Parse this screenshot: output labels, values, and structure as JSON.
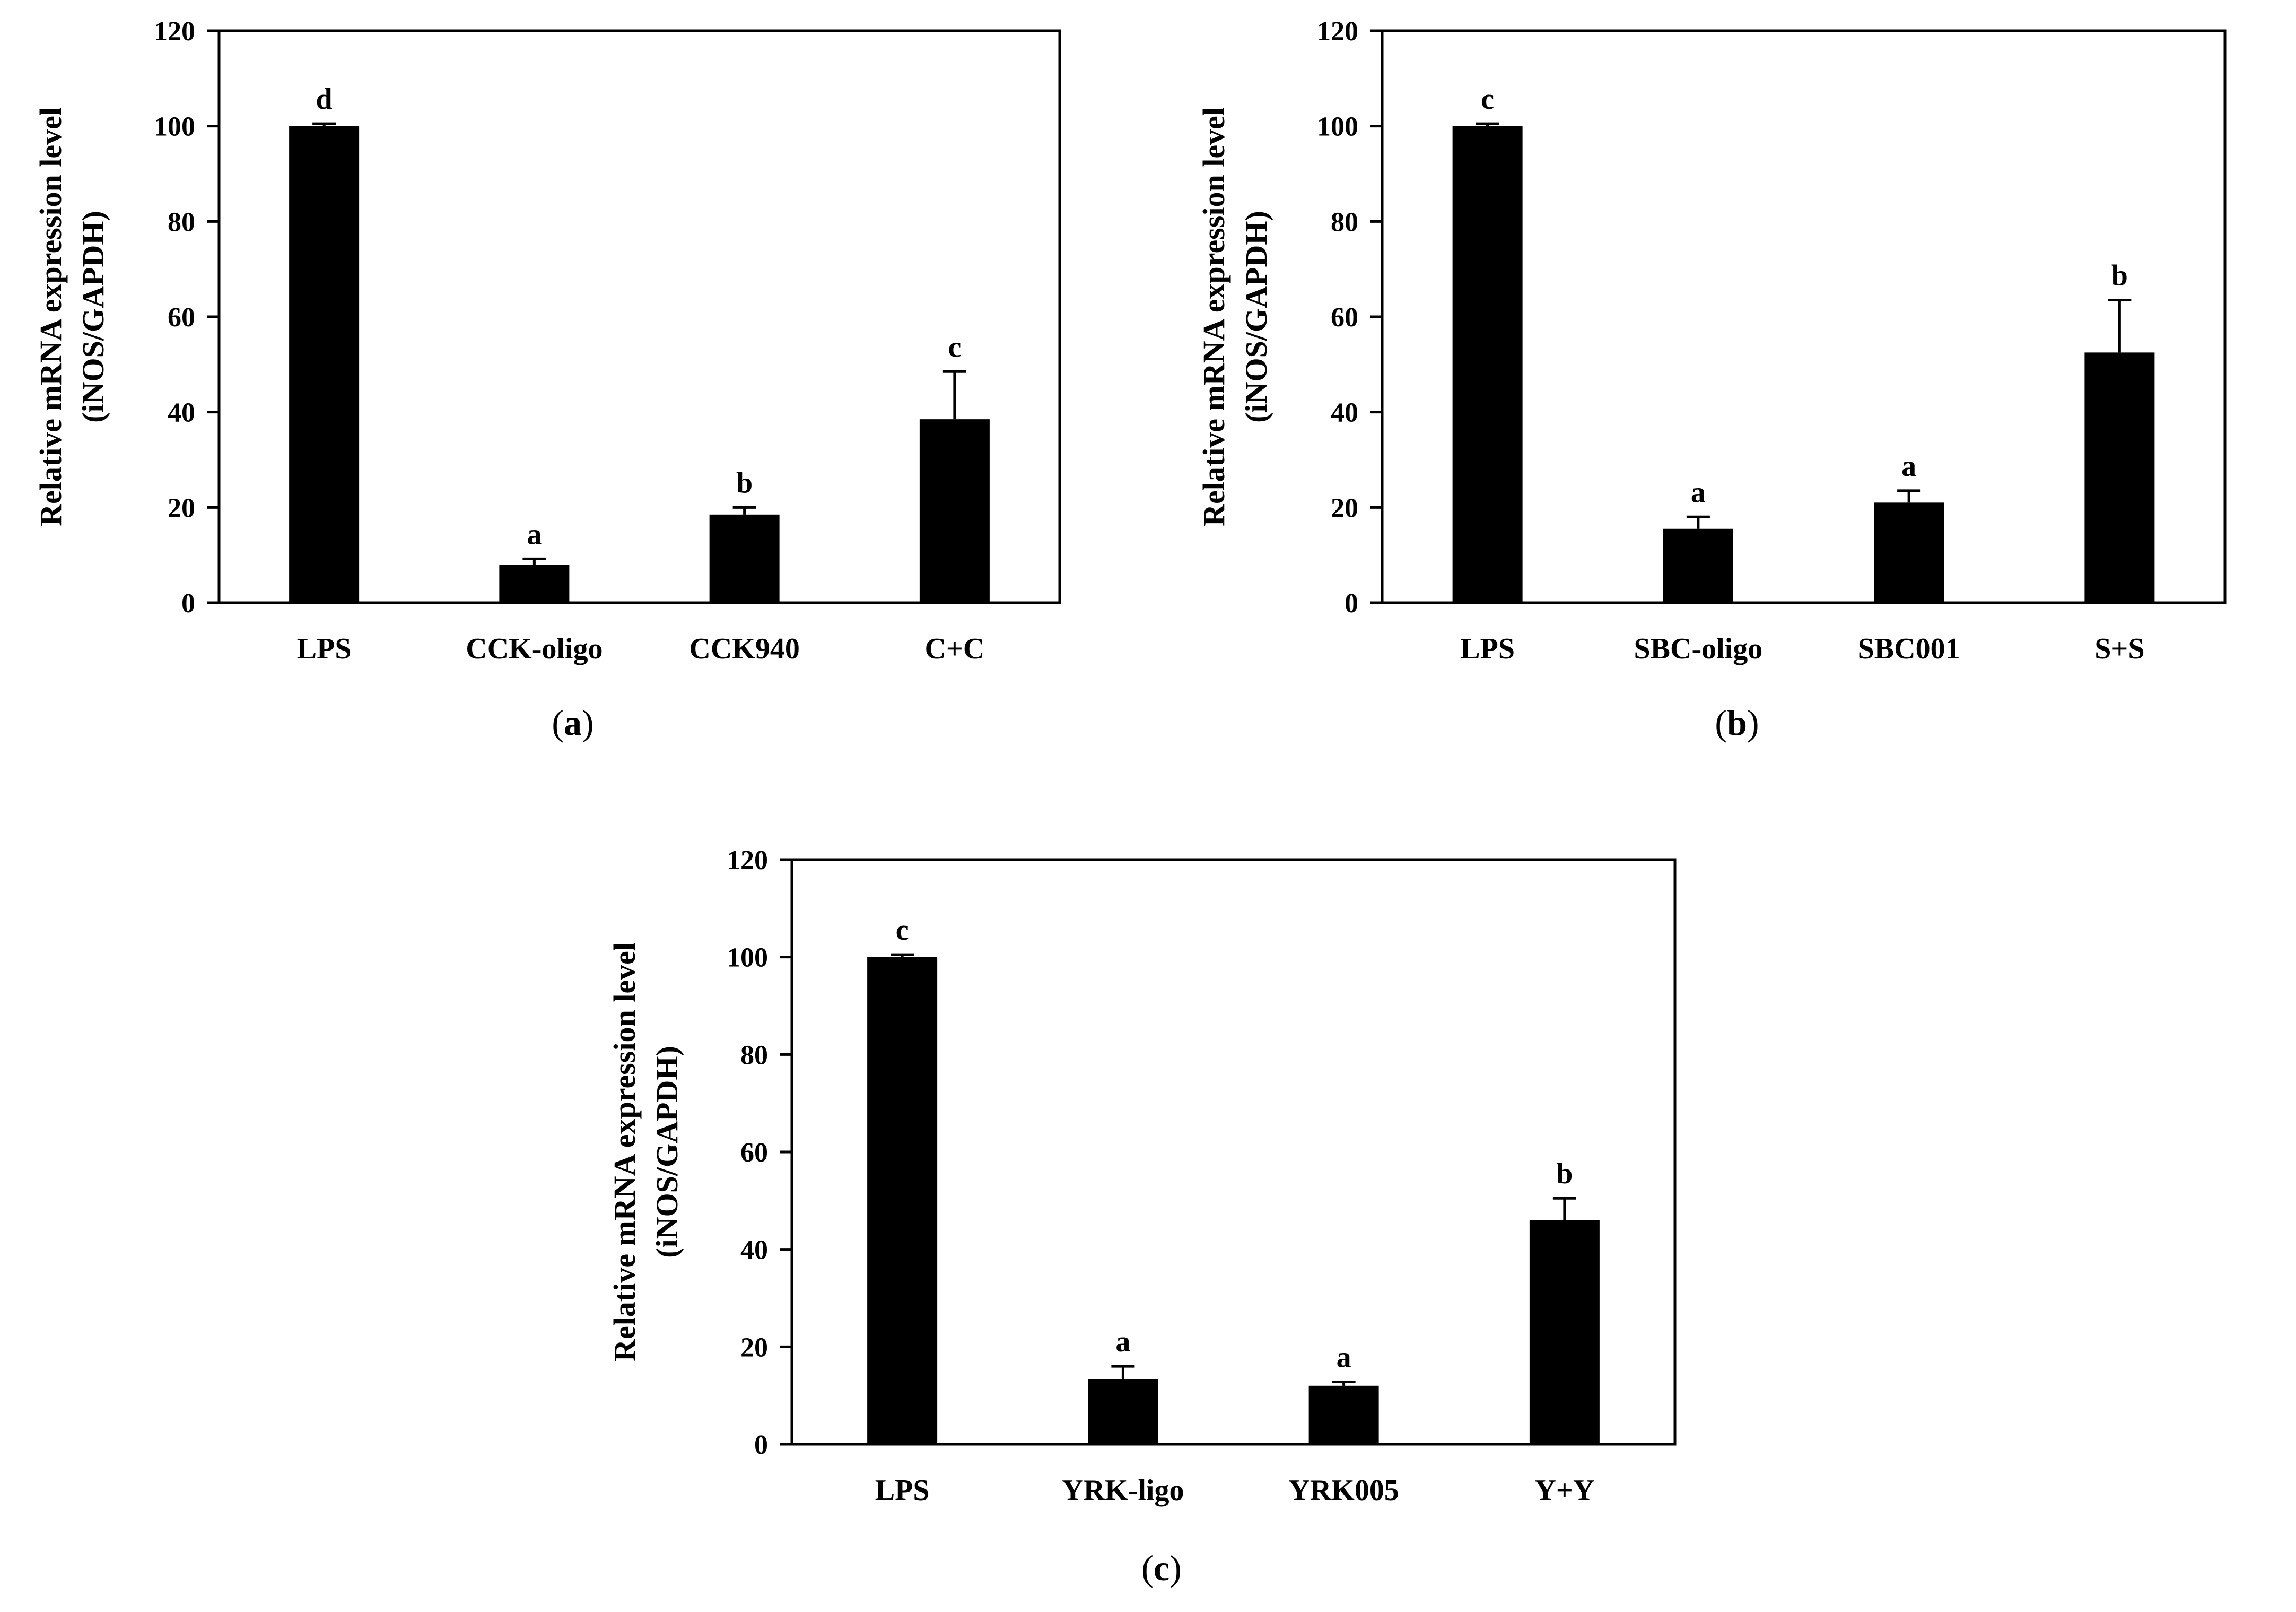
{
  "chart_data": [
    {
      "type": "bar",
      "panel": "a",
      "caption_open": "(",
      "caption_letter": "a",
      "caption_close": ")",
      "ylabel_line1": "Relative mRNA expression level",
      "ylabel_line2": "(iNOS/GAPDH)",
      "ylim": [
        0,
        120
      ],
      "yticks": [
        0,
        20,
        40,
        60,
        80,
        100,
        120
      ],
      "categories": [
        "LPS",
        "CCK-oligo",
        "CCK940",
        "C+C"
      ],
      "values": [
        100,
        8,
        18.5,
        38.5
      ],
      "errors": [
        0.5,
        1.2,
        1.5,
        10
      ],
      "significance": [
        "d",
        "a",
        "b",
        "c"
      ],
      "bar_color": "#000000"
    },
    {
      "type": "bar",
      "panel": "b",
      "caption_open": "(",
      "caption_letter": "b",
      "caption_close": ")",
      "ylabel_line1": "Relative mRNA expression level",
      "ylabel_line2": "(iNOS/GAPDH)",
      "ylim": [
        0,
        120
      ],
      "yticks": [
        0,
        20,
        40,
        60,
        80,
        100,
        120
      ],
      "categories": [
        "LPS",
        "SBC-oligo",
        "SBC001",
        "S+S"
      ],
      "values": [
        100,
        15.5,
        21,
        52.5
      ],
      "errors": [
        0.5,
        2.5,
        2.5,
        11
      ],
      "significance": [
        "c",
        "a",
        "a",
        "b"
      ],
      "bar_color": "#000000"
    },
    {
      "type": "bar",
      "panel": "c",
      "caption_open": "(",
      "caption_letter": "c",
      "caption_close": ")",
      "ylabel_line1": "Relative mRNA expression level",
      "ylabel_line2": "(iNOS/GAPDH)",
      "ylim": [
        0,
        120
      ],
      "yticks": [
        0,
        20,
        40,
        60,
        80,
        100,
        120
      ],
      "categories": [
        "LPS",
        "YRK-ligo",
        "YRK005",
        "Y+Y"
      ],
      "values": [
        100,
        13.5,
        12,
        46
      ],
      "errors": [
        0.5,
        2.5,
        0.8,
        4.5
      ],
      "significance": [
        "c",
        "a",
        "a",
        "b"
      ],
      "bar_color": "#000000"
    }
  ]
}
